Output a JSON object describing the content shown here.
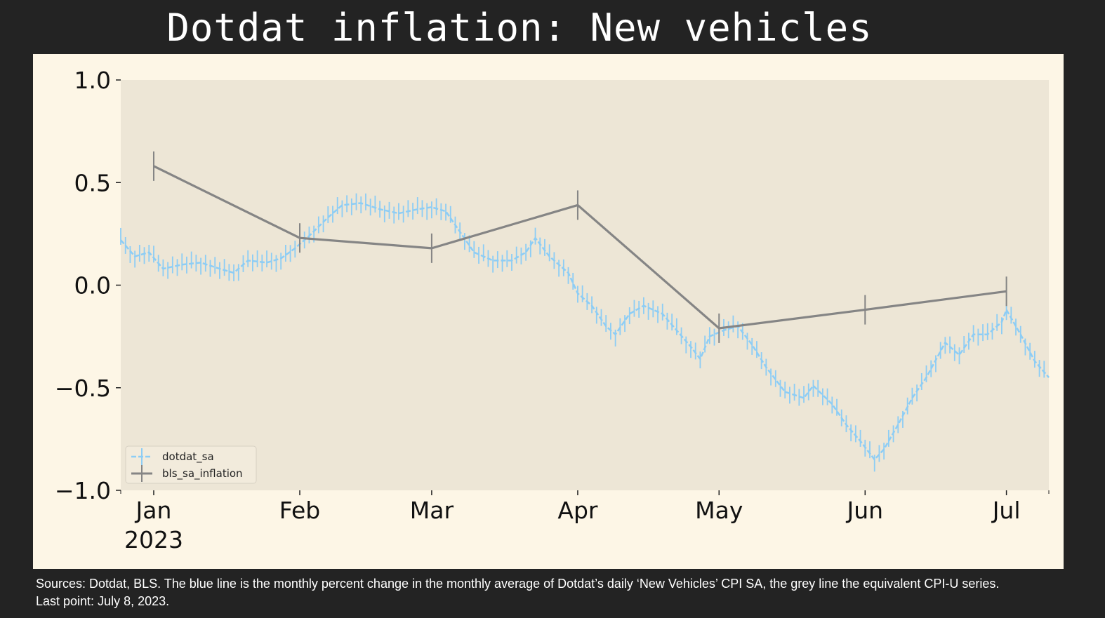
{
  "title": "Dotdat inflation: New vehicles",
  "footnote": "Sources: Dotdat, BLS. The blue line is the monthly percent change in the monthly average of Dotdat’s daily ‘New Vehicles’ CPI SA, the grey line the equivalent CPI-U series. Last point: July 8, 2023.",
  "colors": {
    "page_background": "#232323",
    "figure_background": "#fdf6e6",
    "plot_background": "#ede6d6",
    "dotdat_sa": "#8dcdf5",
    "bls_sa_inflation": "#858585",
    "text": "#ffffff"
  },
  "chart_data": {
    "type": "line",
    "title": "",
    "xlabel": "",
    "ylabel": "",
    "ylim": [
      -1.0,
      1.0
    ],
    "xlim": [
      "2022-12-25",
      "2023-07-10"
    ],
    "grid": false,
    "legend": "bottom-left",
    "y_ticks": [
      "1.0",
      "0.5",
      "0.0",
      "−0.5",
      "−1.0"
    ],
    "x_ticks": [
      {
        "label": "Jan",
        "sublabel": "2023",
        "date": "2023-01-01"
      },
      {
        "label": "Feb",
        "sublabel": "",
        "date": "2023-02-01"
      },
      {
        "label": "Mar",
        "sublabel": "",
        "date": "2023-03-01"
      },
      {
        "label": "Apr",
        "sublabel": "",
        "date": "2023-04-01"
      },
      {
        "label": "May",
        "sublabel": "",
        "date": "2023-05-01"
      },
      {
        "label": "Jun",
        "sublabel": "",
        "date": "2023-06-01"
      },
      {
        "label": "Jul",
        "sublabel": "",
        "date": "2023-07-01"
      }
    ],
    "series": [
      {
        "name": "dotdat_sa",
        "style": "dashed with vertical tick markers",
        "points": [
          {
            "x": "2022-12-25",
            "y": 0.22
          },
          {
            "x": "2022-12-28",
            "y": 0.14
          },
          {
            "x": "2022-12-31",
            "y": 0.16
          },
          {
            "x": "2023-01-03",
            "y": 0.08
          },
          {
            "x": "2023-01-07",
            "y": 0.1
          },
          {
            "x": "2023-01-11",
            "y": 0.11
          },
          {
            "x": "2023-01-15",
            "y": 0.08
          },
          {
            "x": "2023-01-18",
            "y": 0.06
          },
          {
            "x": "2023-01-21",
            "y": 0.12
          },
          {
            "x": "2023-01-25",
            "y": 0.11
          },
          {
            "x": "2023-01-28",
            "y": 0.13
          },
          {
            "x": "2023-01-31",
            "y": 0.18
          },
          {
            "x": "2023-02-03",
            "y": 0.24
          },
          {
            "x": "2023-02-07",
            "y": 0.33
          },
          {
            "x": "2023-02-10",
            "y": 0.39
          },
          {
            "x": "2023-02-14",
            "y": 0.4
          },
          {
            "x": "2023-02-18",
            "y": 0.37
          },
          {
            "x": "2023-02-22",
            "y": 0.35
          },
          {
            "x": "2023-02-26",
            "y": 0.37
          },
          {
            "x": "2023-03-01",
            "y": 0.38
          },
          {
            "x": "2023-03-04",
            "y": 0.36
          },
          {
            "x": "2023-03-07",
            "y": 0.26
          },
          {
            "x": "2023-03-10",
            "y": 0.16
          },
          {
            "x": "2023-03-14",
            "y": 0.12
          },
          {
            "x": "2023-03-18",
            "y": 0.12
          },
          {
            "x": "2023-03-21",
            "y": 0.16
          },
          {
            "x": "2023-03-23",
            "y": 0.23
          },
          {
            "x": "2023-03-26",
            "y": 0.14
          },
          {
            "x": "2023-03-30",
            "y": 0.06
          },
          {
            "x": "2023-04-01",
            "y": -0.04
          },
          {
            "x": "2023-04-04",
            "y": -0.1
          },
          {
            "x": "2023-04-07",
            "y": -0.2
          },
          {
            "x": "2023-04-09",
            "y": -0.24
          },
          {
            "x": "2023-04-12",
            "y": -0.14
          },
          {
            "x": "2023-04-15",
            "y": -0.1
          },
          {
            "x": "2023-04-19",
            "y": -0.14
          },
          {
            "x": "2023-04-22",
            "y": -0.22
          },
          {
            "x": "2023-04-25",
            "y": -0.3
          },
          {
            "x": "2023-04-27",
            "y": -0.36
          },
          {
            "x": "2023-04-29",
            "y": -0.25
          },
          {
            "x": "2023-05-02",
            "y": -0.22
          },
          {
            "x": "2023-05-05",
            "y": -0.2
          },
          {
            "x": "2023-05-08",
            "y": -0.29
          },
          {
            "x": "2023-05-11",
            "y": -0.4
          },
          {
            "x": "2023-05-15",
            "y": -0.52
          },
          {
            "x": "2023-05-19",
            "y": -0.55
          },
          {
            "x": "2023-05-21",
            "y": -0.49
          },
          {
            "x": "2023-05-25",
            "y": -0.58
          },
          {
            "x": "2023-05-28",
            "y": -0.68
          },
          {
            "x": "2023-05-31",
            "y": -0.76
          },
          {
            "x": "2023-06-03",
            "y": -0.85
          },
          {
            "x": "2023-06-05",
            "y": -0.8
          },
          {
            "x": "2023-06-08",
            "y": -0.68
          },
          {
            "x": "2023-06-11",
            "y": -0.55
          },
          {
            "x": "2023-06-14",
            "y": -0.45
          },
          {
            "x": "2023-06-18",
            "y": -0.28
          },
          {
            "x": "2023-06-21",
            "y": -0.34
          },
          {
            "x": "2023-06-24",
            "y": -0.24
          },
          {
            "x": "2023-06-27",
            "y": -0.24
          },
          {
            "x": "2023-06-30",
            "y": -0.18
          },
          {
            "x": "2023-07-01",
            "y": -0.12
          },
          {
            "x": "2023-07-04",
            "y": -0.24
          },
          {
            "x": "2023-07-07",
            "y": -0.37
          },
          {
            "x": "2023-07-10",
            "y": -0.45
          }
        ]
      },
      {
        "name": "bls_sa_inflation",
        "style": "solid with vertical tick markers",
        "points": [
          {
            "x": "2023-01-01",
            "y": 0.58
          },
          {
            "x": "2023-02-01",
            "y": 0.23
          },
          {
            "x": "2023-03-01",
            "y": 0.18
          },
          {
            "x": "2023-04-01",
            "y": 0.39
          },
          {
            "x": "2023-05-01",
            "y": -0.21
          },
          {
            "x": "2023-06-01",
            "y": -0.12
          },
          {
            "x": "2023-07-01",
            "y": -0.03
          }
        ]
      }
    ]
  }
}
